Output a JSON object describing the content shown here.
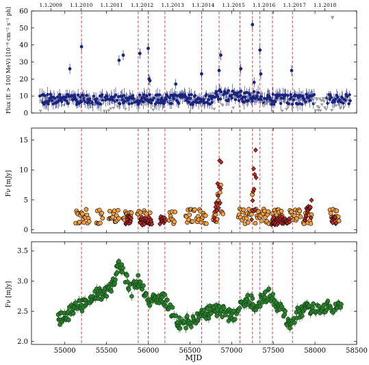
{
  "chart_data": [
    {
      "type": "scatter",
      "panel": "top",
      "top_axis_ticks": [
        "1.1.2009",
        "1.1.2010",
        "1.1.2011",
        "1.1.2012",
        "1.1.2013",
        "1.1.2014",
        "1.1.2015",
        "1.1.2016",
        "1.1.2017",
        "1.1.2018"
      ],
      "top_axis_mjd": [
        54832,
        55197,
        55562,
        55927,
        56293,
        56658,
        57023,
        57388,
        57754,
        58119
      ],
      "ylabel": "Flux (E > 100 MeV) [10⁻⁸ cm⁻² s⁻¹ ph]",
      "ylim": [
        0,
        60
      ],
      "yticks": [
        0,
        10,
        20,
        30,
        40,
        50,
        60
      ],
      "series": [
        {
          "color": "#1a237e",
          "marker": "circle-errorbar"
        },
        {
          "color": "#9e9e9e",
          "marker": "triangle-down (upper limit)"
        }
      ],
      "flares": [
        [
          55200,
          39
        ],
        [
          55650,
          31
        ],
        [
          55700,
          34
        ],
        [
          55900,
          35
        ],
        [
          56000,
          38
        ],
        [
          56010,
          20
        ],
        [
          56020,
          19
        ],
        [
          56330,
          17
        ],
        [
          56640,
          23
        ],
        [
          56870,
          34
        ],
        [
          56850,
          25
        ],
        [
          57110,
          26
        ],
        [
          57250,
          52
        ],
        [
          57270,
          18
        ],
        [
          57340,
          37
        ],
        [
          57350,
          23
        ],
        [
          57720,
          25
        ],
        [
          55060,
          26
        ]
      ],
      "upper_limit_outlier": [
        58210,
        56
      ]
    },
    {
      "type": "scatter",
      "panel": "middle",
      "ylabel": "Fν [mJy]",
      "ylim": [
        -0.5,
        17
      ],
      "yticks": [
        0,
        5,
        10,
        15
      ],
      "series": [
        {
          "color": "#f5a142",
          "marker": "circle"
        },
        {
          "color": "#c62828",
          "marker": "diamond"
        }
      ]
    },
    {
      "type": "scatter",
      "panel": "bottom",
      "ylabel": "Fν [mJy]",
      "xlabel": "MJD",
      "xlim": [
        54600,
        58500
      ],
      "xticks": [
        55000,
        55500,
        56000,
        56500,
        57000,
        57500,
        58000,
        58500
      ],
      "ylim": [
        1.95,
        3.65
      ],
      "yticks": [
        2.0,
        2.5,
        3.0,
        3.5
      ],
      "series": [
        {
          "color": "#2e7d32",
          "marker": "circle-errorbar"
        }
      ]
    }
  ],
  "dashed_lines_mjd": [
    55200,
    55880,
    56000,
    56200,
    56640,
    56850,
    57100,
    57250,
    57340,
    57490,
    57730
  ],
  "labels": {
    "xlabel": "MJD",
    "ylabel_top": "Flux (E > 100 MeV) [10⁻⁸ cm⁻² s⁻¹ ph]",
    "ylabel_mid": "Fν [mJy]",
    "ylabel_bot": "Fν [mJy]"
  }
}
